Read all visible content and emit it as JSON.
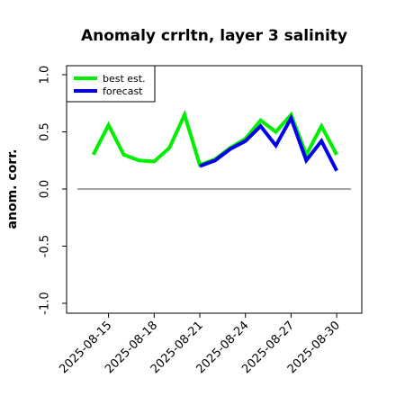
{
  "chart_data": {
    "type": "line",
    "title": "Anomaly crrltn, layer 3 salinity",
    "xlabel": "",
    "ylabel": "anom. corr.",
    "ylim": [
      -1.0,
      1.0
    ],
    "yticks": [
      "-1.0",
      "-0.5",
      "0.0",
      "0.5",
      "1.0"
    ],
    "xticks": [
      "2025-08-15",
      "2025-08-18",
      "2025-08-21",
      "2025-08-24",
      "2025-08-27",
      "2025-08-30"
    ],
    "highlight_tick": "2025-08-21",
    "highlight_color": "#228b22",
    "reference_line": 0.0,
    "grid": false,
    "legend_position": "top-left",
    "series": [
      {
        "name": "best est.",
        "color": "#00ee00",
        "x": [
          "2025-08-14",
          "2025-08-15",
          "2025-08-16",
          "2025-08-17",
          "2025-08-18",
          "2025-08-19",
          "2025-08-20",
          "2025-08-21",
          "2025-08-22",
          "2025-08-23",
          "2025-08-24",
          "2025-08-25",
          "2025-08-26",
          "2025-08-27",
          "2025-08-28",
          "2025-08-29",
          "2025-08-30"
        ],
        "values": [
          0.3,
          0.56,
          0.3,
          0.25,
          0.24,
          0.36,
          0.65,
          0.21,
          0.26,
          0.36,
          0.44,
          0.6,
          0.5,
          0.65,
          0.3,
          0.55,
          0.3
        ]
      },
      {
        "name": "forecast",
        "color": "#0000ee",
        "x": [
          "2025-08-21",
          "2025-08-22",
          "2025-08-23",
          "2025-08-24",
          "2025-08-25",
          "2025-08-26",
          "2025-08-27",
          "2025-08-28",
          "2025-08-29",
          "2025-08-30"
        ],
        "values": [
          0.2,
          0.25,
          0.35,
          0.42,
          0.55,
          0.38,
          0.62,
          0.25,
          0.42,
          0.16
        ]
      }
    ]
  }
}
